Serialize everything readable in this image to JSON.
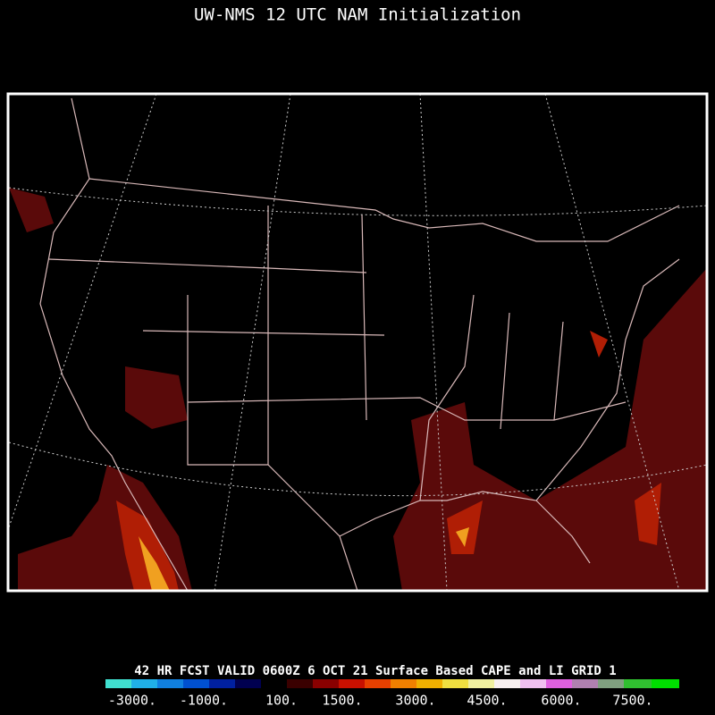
{
  "title": "UW-NMS 12 UTC NAM Initialization",
  "caption": "42 HR FCST VALID 0600Z  6 OCT 21 Surface Based CAPE and LI GRID 1",
  "colorbar": {
    "labels": [
      "-3000.",
      "-1000.",
      "100.",
      "1500.",
      "3000.",
      "4500.",
      "6000.",
      "7500."
    ]
  }
}
